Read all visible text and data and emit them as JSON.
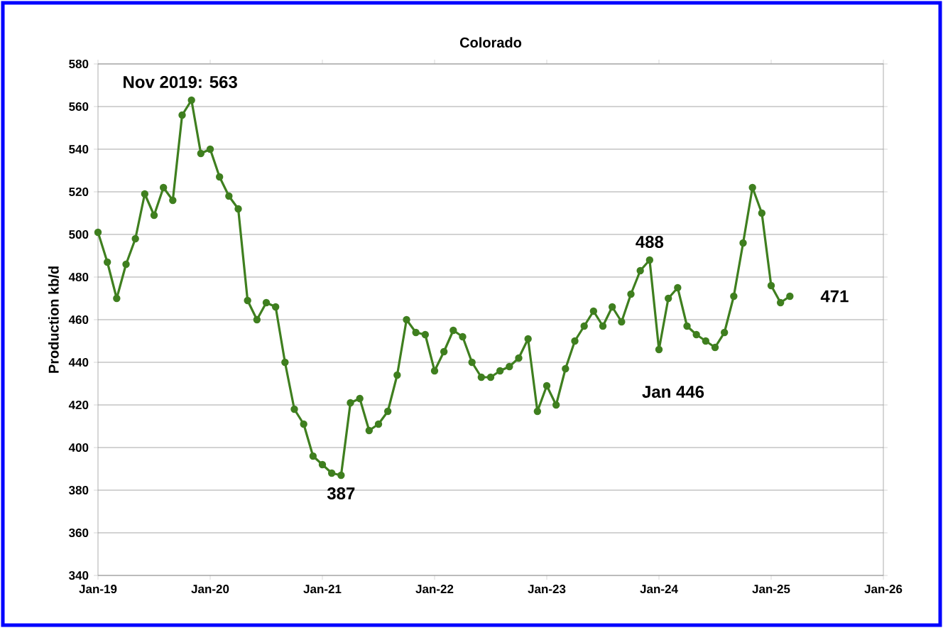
{
  "chart_data": {
    "type": "line",
    "title": "Colorado",
    "ylabel": "Production kb/d",
    "x": [
      "2019-01",
      "2019-02",
      "2019-03",
      "2019-04",
      "2019-05",
      "2019-06",
      "2019-07",
      "2019-08",
      "2019-09",
      "2019-10",
      "2019-11",
      "2019-12",
      "2020-01",
      "2020-02",
      "2020-03",
      "2020-04",
      "2020-05",
      "2020-06",
      "2020-07",
      "2020-08",
      "2020-09",
      "2020-10",
      "2020-11",
      "2020-12",
      "2021-01",
      "2021-02",
      "2021-03",
      "2021-04",
      "2021-05",
      "2021-06",
      "2021-07",
      "2021-08",
      "2021-09",
      "2021-10",
      "2021-11",
      "2021-12",
      "2022-01",
      "2022-02",
      "2022-03",
      "2022-04",
      "2022-05",
      "2022-06",
      "2022-07",
      "2022-08",
      "2022-09",
      "2022-10",
      "2022-11",
      "2022-12",
      "2023-01",
      "2023-02",
      "2023-03",
      "2023-04",
      "2023-05",
      "2023-06",
      "2023-07",
      "2023-08",
      "2023-09",
      "2023-10",
      "2023-11",
      "2023-12",
      "2024-01",
      "2024-02",
      "2024-03",
      "2024-04",
      "2024-05",
      "2024-06",
      "2024-07",
      "2024-08",
      "2024-09",
      "2024-10",
      "2024-11",
      "2024-12",
      "2025-01",
      "2025-02",
      "2025-03"
    ],
    "series": [
      {
        "color": "#3f7f1f",
        "values": [
          501,
          487,
          470,
          486,
          498,
          519,
          509,
          522,
          516,
          556,
          563,
          538,
          540,
          527,
          518,
          512,
          469,
          460,
          468,
          466,
          440,
          418,
          411,
          396,
          392,
          388,
          387,
          421,
          423,
          408,
          411,
          417,
          434,
          460,
          454,
          453,
          436,
          445,
          455,
          452,
          440,
          433,
          433,
          436,
          438,
          442,
          451,
          417,
          429,
          420,
          437,
          450,
          457,
          464,
          457,
          466,
          459,
          472,
          483,
          488,
          446,
          470,
          475,
          457,
          453,
          450,
          447,
          454,
          471,
          496,
          522,
          510,
          476,
          468,
          471
        ]
      }
    ],
    "xlim": [
      "2019-01",
      "2026-01"
    ],
    "xticks": [
      {
        "value": "2019-01",
        "label": "Jan-19"
      },
      {
        "value": "2020-01",
        "label": "Jan-20"
      },
      {
        "value": "2021-01",
        "label": "Jan-21"
      },
      {
        "value": "2022-01",
        "label": "Jan-22"
      },
      {
        "value": "2023-01",
        "label": "Jan-23"
      },
      {
        "value": "2024-01",
        "label": "Jan-24"
      },
      {
        "value": "2025-01",
        "label": "Jan-25"
      },
      {
        "value": "2026-01",
        "label": "Jan-26"
      }
    ],
    "ylim": [
      340,
      580
    ],
    "yticks": [
      340,
      360,
      380,
      400,
      420,
      440,
      460,
      480,
      500,
      520,
      540,
      560,
      580
    ],
    "grid": "y",
    "marker": "circle",
    "line_style": "solid",
    "annotations": [
      {
        "text": "Nov 2019:  563",
        "x": "2019-11",
        "y": 563
      },
      {
        "text": "387",
        "x": "2021-03",
        "y": 387
      },
      {
        "text": "488",
        "x": "2023-12",
        "y": 488
      },
      {
        "text": "Jan 446",
        "x": "2024-01",
        "y": 446
      },
      {
        "text": "471",
        "x": "2025-03",
        "y": 471
      }
    ]
  }
}
